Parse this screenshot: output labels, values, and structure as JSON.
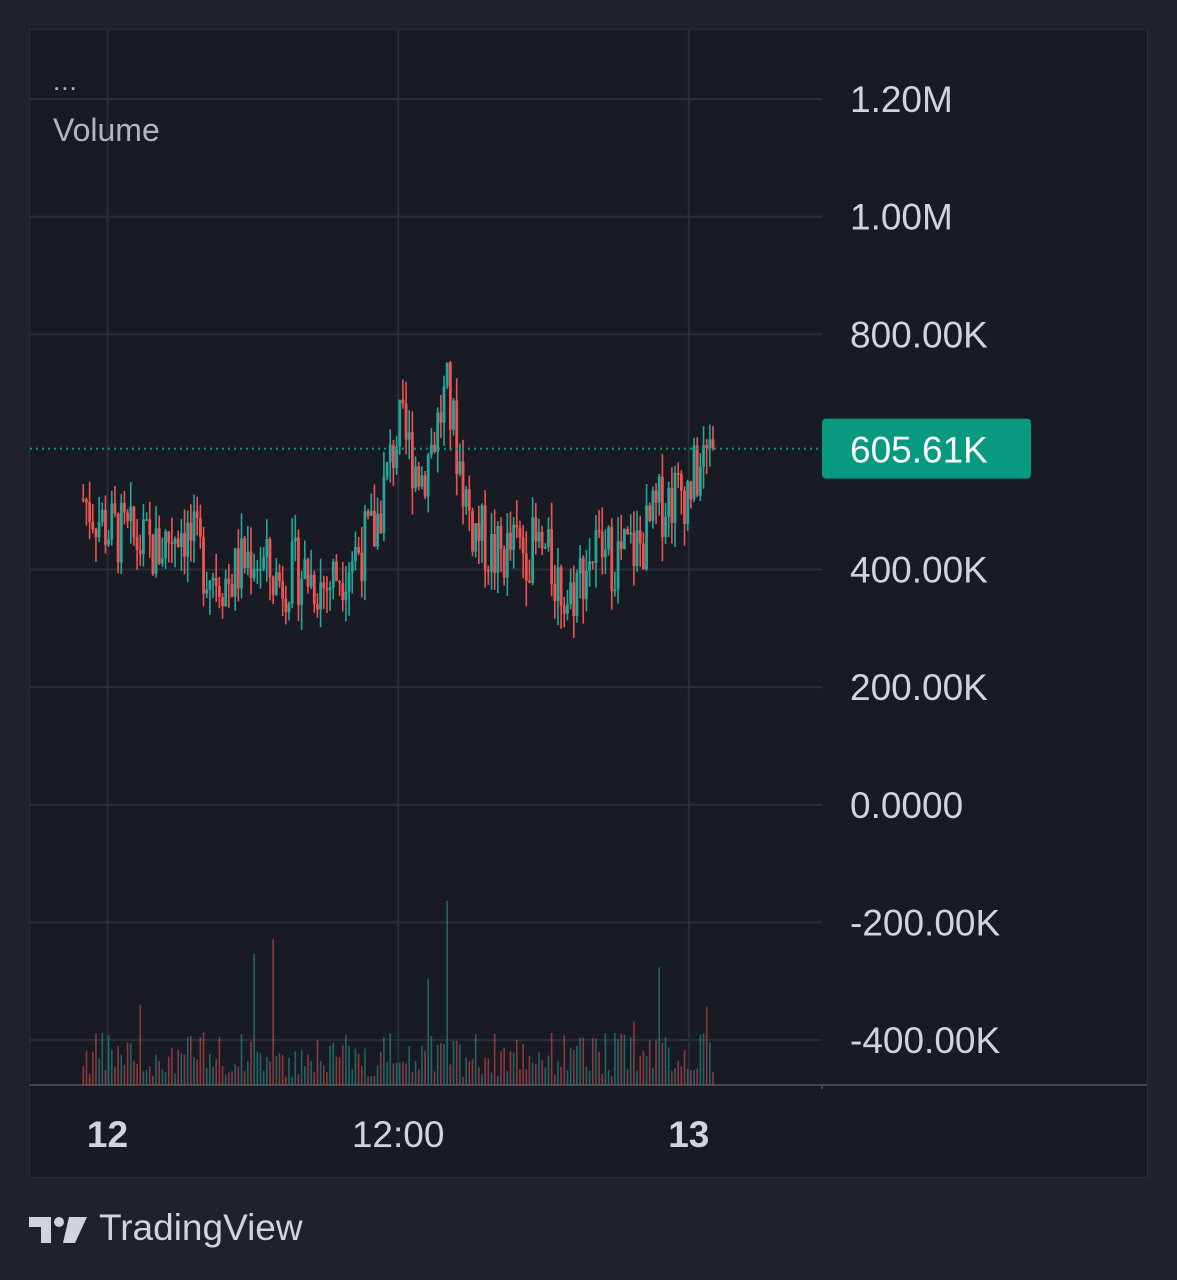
{
  "header": {
    "menu_label": "...",
    "indicator_label": "Volume"
  },
  "brand": {
    "name": "TradingView",
    "logo_icon": "tradingview-logo-icon"
  },
  "colors": {
    "up": "#26a69a",
    "down": "#ef5350",
    "last_price_badge": "#089981",
    "grid": "#2a2e39",
    "text": "#d1d4dc"
  },
  "chart_data": {
    "type": "candlestick",
    "title": "",
    "indicator": "Volume",
    "y_axis": {
      "ticks": [
        {
          "value": 1200000,
          "label": "1.20M"
        },
        {
          "value": 1000000,
          "label": "1.00M"
        },
        {
          "value": 800000,
          "label": "800.00K"
        },
        {
          "value": 400000,
          "label": "400.00K"
        },
        {
          "value": 200000,
          "label": "200.00K"
        },
        {
          "value": 0,
          "label": "0.0000"
        },
        {
          "value": -200000,
          "label": "-200.00K"
        },
        {
          "value": -400000,
          "label": "-400.00K"
        }
      ],
      "range": [
        -480000,
        1320000
      ]
    },
    "x_axis": {
      "ticks": [
        {
          "hour": 0,
          "label": "12",
          "bold": true
        },
        {
          "hour": 12,
          "label": "12:00",
          "bold": false
        },
        {
          "hour": 24,
          "label": "13",
          "bold": true
        }
      ],
      "range": [
        -3.2,
        29.5
      ]
    },
    "last_price": {
      "value": 605610,
      "label": "605.61K"
    },
    "grid": true,
    "series_approx": [
      {
        "hour": -1.0,
        "close": 520000
      },
      {
        "hour": 0.0,
        "close": 470000
      },
      {
        "hour": 1.0,
        "close": 450000
      },
      {
        "hour": 2.0,
        "close": 430000
      },
      {
        "hour": 3.0,
        "close": 480000
      },
      {
        "hour": 4.0,
        "close": 410000
      },
      {
        "hour": 5.0,
        "close": 380000
      },
      {
        "hour": 6.0,
        "close": 430000
      },
      {
        "hour": 7.0,
        "close": 380000
      },
      {
        "hour": 8.0,
        "close": 400000
      },
      {
        "hour": 9.0,
        "close": 370000
      },
      {
        "hour": 10.0,
        "close": 420000
      },
      {
        "hour": 11.0,
        "close": 460000
      },
      {
        "hour": 12.0,
        "close": 640000
      },
      {
        "hour": 13.0,
        "close": 560000
      },
      {
        "hour": 14.0,
        "close": 700000
      },
      {
        "hour": 15.0,
        "close": 480000
      },
      {
        "hour": 16.0,
        "close": 420000
      },
      {
        "hour": 17.0,
        "close": 440000
      },
      {
        "hour": 18.0,
        "close": 430000
      },
      {
        "hour": 19.0,
        "close": 350000
      },
      {
        "hour": 20.0,
        "close": 430000
      },
      {
        "hour": 21.0,
        "close": 420000
      },
      {
        "hour": 22.0,
        "close": 440000
      },
      {
        "hour": 23.0,
        "close": 520000
      },
      {
        "hour": 24.0,
        "close": 540000
      },
      {
        "hour": 25.0,
        "close": 605610
      }
    ]
  }
}
